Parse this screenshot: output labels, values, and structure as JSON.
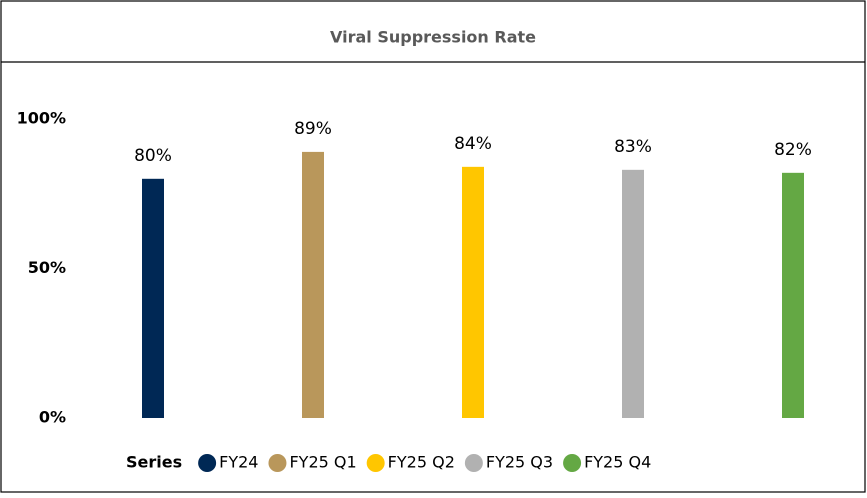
{
  "chart_data": {
    "type": "bar",
    "title": "Viral Suppression Rate",
    "legend_title": "Series",
    "ylim": [
      0,
      100
    ],
    "yticks": [
      {
        "value": 0,
        "label": "0%"
      },
      {
        "value": 50,
        "label": "50%"
      },
      {
        "value": 100,
        "label": "100%"
      }
    ],
    "grid": false,
    "series": [
      {
        "name": "FY24",
        "color": "#002855",
        "values": [
          80
        ],
        "value_labels": [
          "80%"
        ]
      },
      {
        "name": "FY25 Q1",
        "color": "#b9975b",
        "values": [
          89
        ],
        "value_labels": [
          "89%"
        ]
      },
      {
        "name": "FY25 Q2",
        "color": "#ffc600",
        "values": [
          84
        ],
        "value_labels": [
          "84%"
        ]
      },
      {
        "name": "FY25 Q3",
        "color": "#b1b1b1",
        "values": [
          83
        ],
        "value_labels": [
          "83%"
        ]
      },
      {
        "name": "FY25 Q4",
        "color": "#64a844",
        "values": [
          82
        ],
        "value_labels": [
          "82%"
        ]
      }
    ]
  }
}
